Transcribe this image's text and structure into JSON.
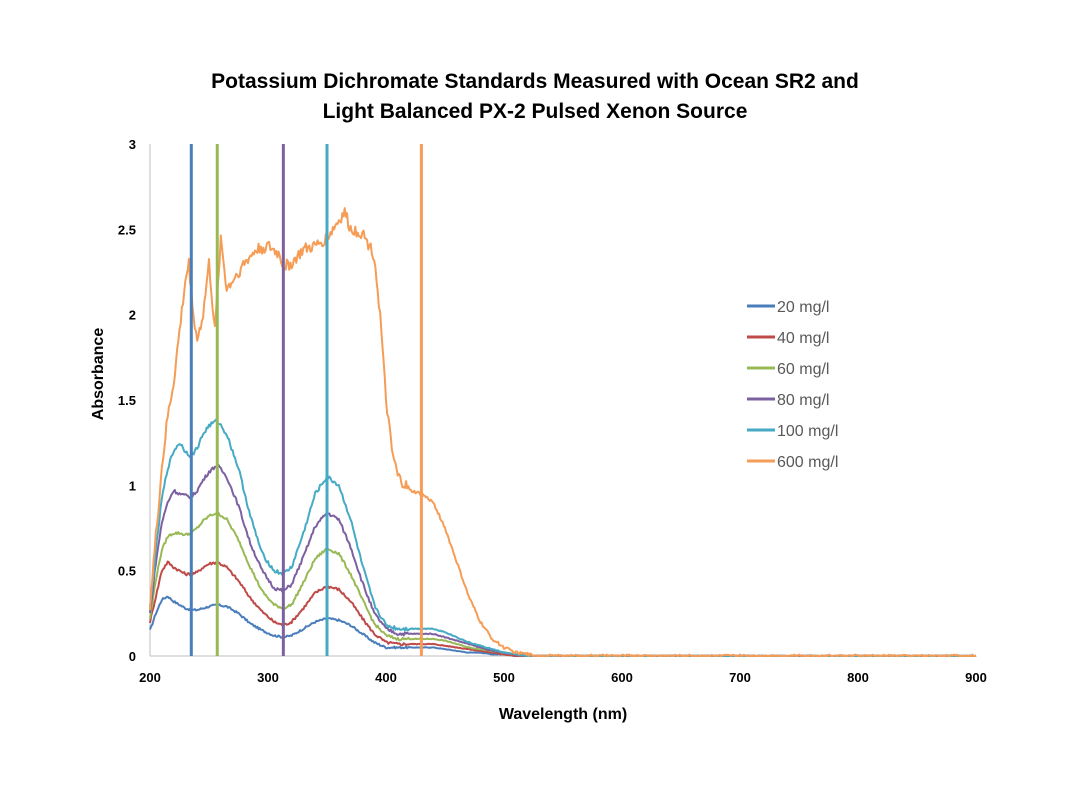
{
  "chart_data": {
    "type": "line",
    "title": [
      "Potassium Dichromate Standards Measured with Ocean SR2 and",
      "Light Balanced PX-2 Pulsed Xenon Source"
    ],
    "xlabel": "Wavelength (nm)",
    "ylabel": "Absorbance",
    "xlim": [
      200,
      900
    ],
    "ylim": [
      0,
      3
    ],
    "xticks": [
      200,
      300,
      400,
      500,
      600,
      700,
      800,
      900
    ],
    "yticks": [
      0,
      0.5,
      1,
      1.5,
      2,
      2.5,
      3
    ],
    "grid": false,
    "legend_position": "right",
    "series": [
      {
        "name": "20 mg/l",
        "color": "#4a7ebb",
        "x": [
          200,
          205,
          210,
          215,
          220,
          225,
          230,
          235,
          240,
          245,
          250,
          257,
          265,
          275,
          285,
          295,
          305,
          313,
          320,
          330,
          340,
          350,
          360,
          370,
          380,
          390,
          400,
          410,
          420,
          430,
          440,
          450,
          460,
          470,
          480,
          490,
          500,
          510,
          520,
          600,
          700,
          800,
          900
        ],
        "y": [
          0.15,
          0.25,
          0.33,
          0.35,
          0.32,
          0.3,
          0.28,
          0.27,
          0.27,
          0.28,
          0.29,
          0.3,
          0.29,
          0.25,
          0.19,
          0.15,
          0.12,
          0.11,
          0.12,
          0.16,
          0.2,
          0.22,
          0.21,
          0.18,
          0.13,
          0.08,
          0.05,
          0.05,
          0.05,
          0.05,
          0.05,
          0.04,
          0.03,
          0.02,
          0.02,
          0.01,
          0.01,
          0.0,
          0.0,
          0.0,
          0.0,
          0.0,
          0.0
        ]
      },
      {
        "name": "40 mg/l",
        "color": "#be4b48",
        "x": [
          200,
          205,
          210,
          215,
          220,
          225,
          230,
          235,
          240,
          245,
          250,
          257,
          265,
          275,
          285,
          295,
          305,
          313,
          320,
          330,
          340,
          350,
          360,
          370,
          380,
          390,
          400,
          410,
          420,
          430,
          440,
          450,
          460,
          470,
          480,
          490,
          500,
          510,
          520,
          600,
          700,
          800,
          900
        ],
        "y": [
          0.2,
          0.35,
          0.5,
          0.55,
          0.52,
          0.5,
          0.48,
          0.48,
          0.49,
          0.52,
          0.54,
          0.55,
          0.52,
          0.44,
          0.34,
          0.26,
          0.2,
          0.18,
          0.2,
          0.28,
          0.37,
          0.41,
          0.39,
          0.32,
          0.22,
          0.13,
          0.08,
          0.07,
          0.07,
          0.07,
          0.07,
          0.06,
          0.05,
          0.04,
          0.03,
          0.02,
          0.01,
          0.0,
          0.0,
          0.0,
          0.0,
          0.0,
          0.0
        ]
      },
      {
        "name": "60 mg/l",
        "color": "#98b954",
        "x": [
          200,
          205,
          210,
          215,
          220,
          225,
          230,
          235,
          240,
          245,
          250,
          257,
          265,
          275,
          285,
          295,
          305,
          313,
          320,
          330,
          340,
          350,
          360,
          370,
          380,
          390,
          400,
          410,
          420,
          430,
          440,
          450,
          460,
          470,
          480,
          490,
          500,
          510,
          520,
          600,
          700,
          800,
          900
        ],
        "y": [
          0.22,
          0.45,
          0.62,
          0.7,
          0.72,
          0.72,
          0.71,
          0.72,
          0.75,
          0.79,
          0.82,
          0.84,
          0.8,
          0.68,
          0.52,
          0.38,
          0.3,
          0.28,
          0.3,
          0.43,
          0.57,
          0.63,
          0.6,
          0.48,
          0.33,
          0.19,
          0.12,
          0.1,
          0.1,
          0.1,
          0.1,
          0.09,
          0.07,
          0.05,
          0.04,
          0.03,
          0.02,
          0.01,
          0.0,
          0.0,
          0.0,
          0.0,
          0.0
        ]
      },
      {
        "name": "80 mg/l",
        "color": "#7d60a0",
        "x": [
          200,
          205,
          210,
          215,
          220,
          225,
          230,
          235,
          240,
          245,
          250,
          257,
          265,
          275,
          285,
          295,
          305,
          313,
          320,
          330,
          340,
          350,
          360,
          370,
          380,
          390,
          400,
          410,
          420,
          430,
          440,
          450,
          460,
          470,
          480,
          490,
          500,
          510,
          520,
          600,
          700,
          800,
          900
        ],
        "y": [
          0.25,
          0.55,
          0.78,
          0.9,
          0.97,
          0.95,
          0.94,
          0.93,
          0.97,
          1.03,
          1.08,
          1.12,
          1.05,
          0.88,
          0.66,
          0.5,
          0.4,
          0.38,
          0.42,
          0.58,
          0.76,
          0.84,
          0.8,
          0.64,
          0.43,
          0.25,
          0.16,
          0.13,
          0.13,
          0.13,
          0.13,
          0.11,
          0.09,
          0.07,
          0.05,
          0.03,
          0.02,
          0.01,
          0.0,
          0.0,
          0.0,
          0.0,
          0.0
        ]
      },
      {
        "name": "100 mg/l",
        "color": "#46aac5",
        "x": [
          200,
          205,
          210,
          215,
          220,
          225,
          230,
          235,
          240,
          245,
          250,
          257,
          265,
          275,
          285,
          295,
          305,
          313,
          320,
          330,
          340,
          350,
          360,
          370,
          380,
          390,
          400,
          410,
          420,
          430,
          440,
          450,
          460,
          470,
          480,
          490,
          500,
          510,
          520,
          600,
          700,
          800,
          900
        ],
        "y": [
          0.28,
          0.62,
          0.92,
          1.1,
          1.2,
          1.25,
          1.2,
          1.17,
          1.22,
          1.3,
          1.35,
          1.38,
          1.3,
          1.1,
          0.82,
          0.6,
          0.5,
          0.48,
          0.52,
          0.72,
          0.95,
          1.05,
          1.0,
          0.8,
          0.53,
          0.3,
          0.18,
          0.16,
          0.16,
          0.16,
          0.16,
          0.14,
          0.11,
          0.08,
          0.06,
          0.04,
          0.02,
          0.01,
          0.0,
          0.0,
          0.0,
          0.0,
          0.0
        ]
      },
      {
        "name": "600 mg/l",
        "color": "#f59d56",
        "x": [
          200,
          205,
          210,
          215,
          220,
          225,
          230,
          233,
          236,
          240,
          245,
          250,
          255,
          260,
          265,
          270,
          280,
          290,
          300,
          310,
          313,
          320,
          330,
          340,
          350,
          360,
          365,
          370,
          380,
          390,
          395,
          400,
          405,
          410,
          420,
          430,
          440,
          450,
          460,
          470,
          480,
          490,
          500,
          510,
          520,
          530,
          540,
          600,
          700,
          800,
          900
        ],
        "y": [
          0.3,
          0.7,
          1.1,
          1.4,
          1.6,
          1.9,
          2.2,
          2.3,
          2.05,
          1.85,
          2.0,
          2.3,
          1.9,
          2.45,
          2.15,
          2.2,
          2.3,
          2.38,
          2.4,
          2.35,
          2.28,
          2.3,
          2.38,
          2.4,
          2.45,
          2.55,
          2.6,
          2.5,
          2.48,
          2.35,
          2.0,
          1.5,
          1.2,
          1.05,
          0.97,
          0.95,
          0.9,
          0.75,
          0.55,
          0.35,
          0.2,
          0.1,
          0.05,
          0.02,
          0.01,
          0.0,
          0.0,
          0.0,
          0.0,
          0.0,
          0.0
        ]
      }
    ],
    "vertical_lines": [
      {
        "x": 235,
        "color": "#4a7ebb"
      },
      {
        "x": 257,
        "color": "#98b954"
      },
      {
        "x": 313,
        "color": "#7d60a0"
      },
      {
        "x": 350,
        "color": "#46aac5"
      },
      {
        "x": 430,
        "color": "#f59d56"
      }
    ]
  }
}
